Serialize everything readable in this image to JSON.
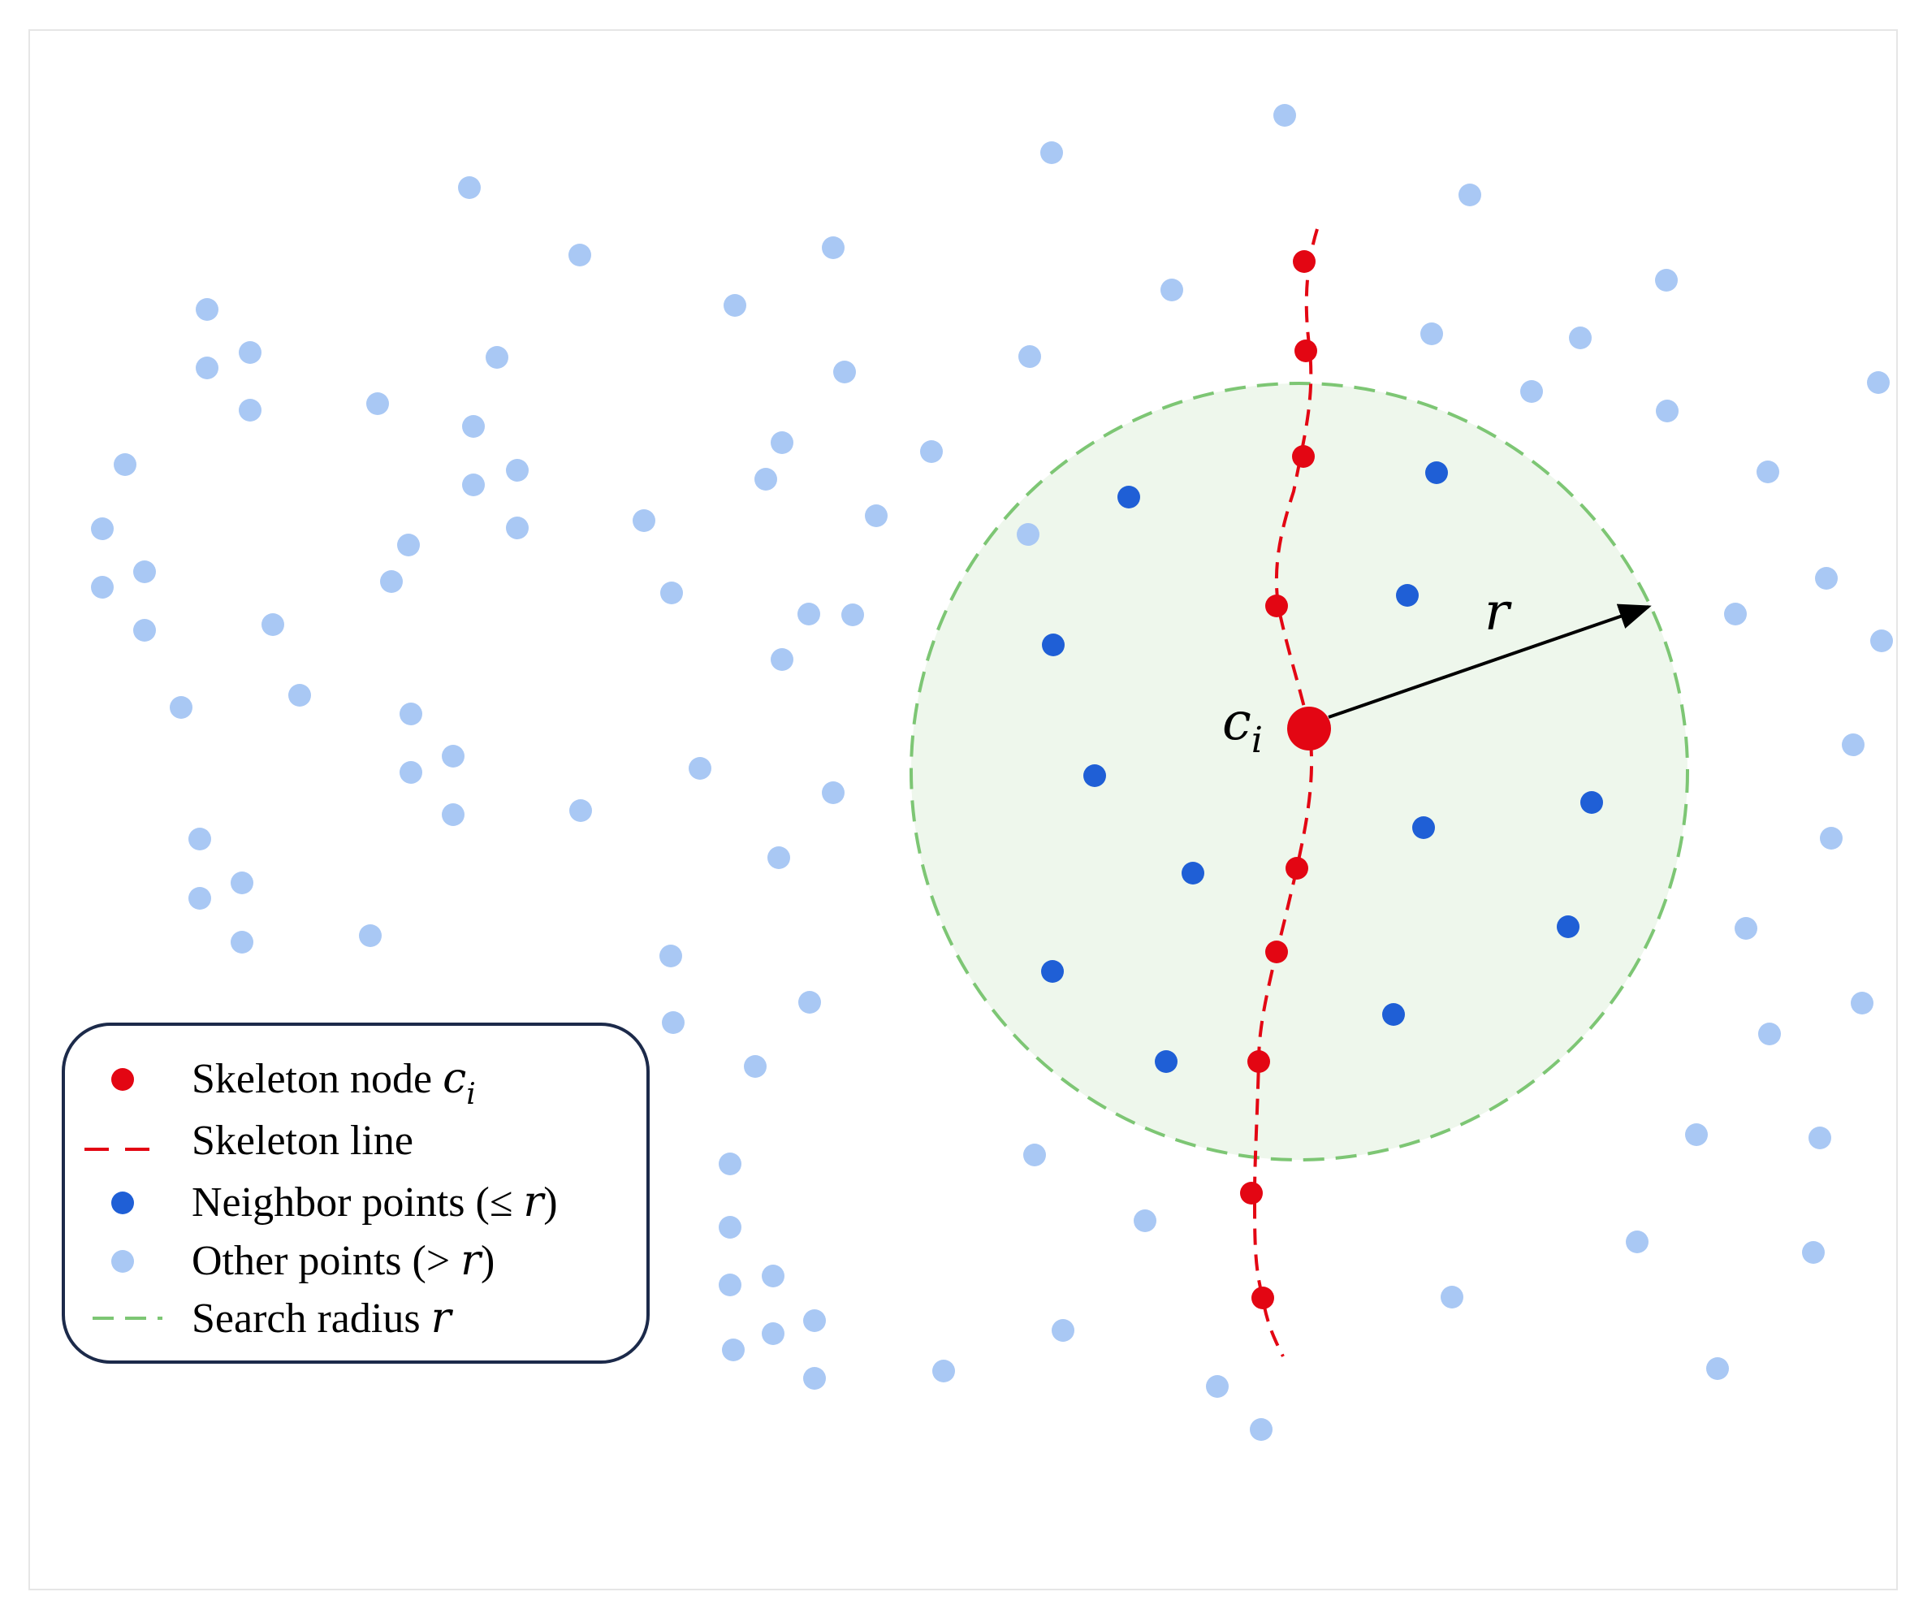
{
  "labels": {
    "center_node": "c",
    "center_node_sub": "i",
    "radius": "r"
  },
  "legend": {
    "skeleton_node": "Skeleton node",
    "skeleton_node_sym": "c",
    "skeleton_node_sub": "i",
    "skeleton_line": "Skeleton line",
    "neighbor_points_a": "Neighbor points (≤ ",
    "neighbor_points_sym": "r",
    "neighbor_points_b": ")",
    "other_points_a": "Other points (> ",
    "other_points_sym": "r",
    "other_points_b": ")",
    "search_radius_a": "Search radius ",
    "search_radius_sym": "r"
  },
  "colors": {
    "skeleton": "#e30613",
    "neighbor": "#1f5fd6",
    "other": "#a9c8f4",
    "radius_stroke": "#7dc674",
    "radius_fill": "#eef7ec",
    "legend_border": "#1c2a4a"
  }
}
